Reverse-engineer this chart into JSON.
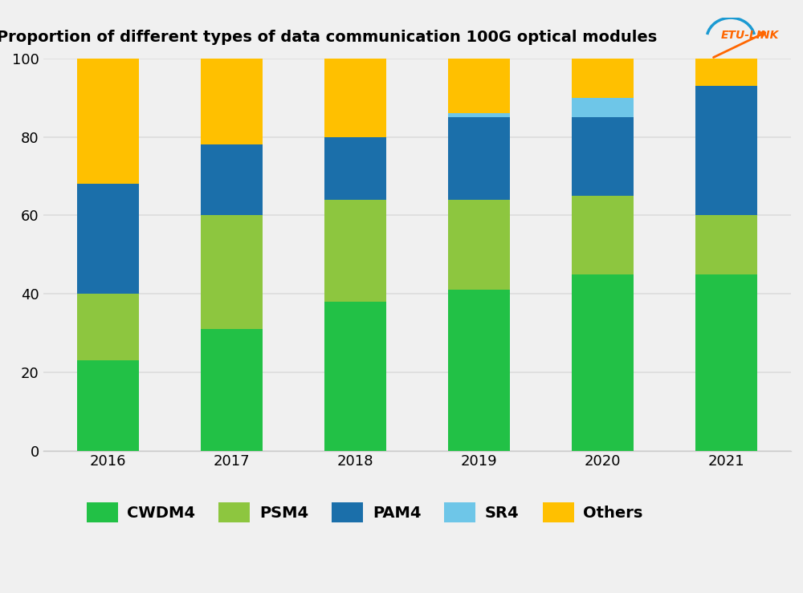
{
  "years": [
    "2016",
    "2017",
    "2018",
    "2019",
    "2020",
    "2021"
  ],
  "CWDM4": [
    23,
    31,
    38,
    41,
    45,
    45
  ],
  "PSM4": [
    17,
    29,
    26,
    23,
    20,
    15
  ],
  "PAM4": [
    28,
    18,
    16,
    21,
    20,
    33
  ],
  "SR4": [
    0,
    0,
    0,
    1,
    5,
    0
  ],
  "Others": [
    32,
    22,
    20,
    15,
    15,
    8
  ],
  "colors": {
    "CWDM4": "#22C146",
    "PSM4": "#8DC63F",
    "PAM4": "#1B6FAA",
    "SR4": "#6EC6E8",
    "Others": "#FFC000"
  },
  "title": "Proportion of different types of data communication 100G optical modules",
  "ylim": [
    0,
    100
  ],
  "yticks": [
    0,
    20,
    40,
    60,
    80,
    100
  ],
  "bg_color": "#F0F0F0",
  "grid_color": "#DCDCDC",
  "title_fontsize": 14,
  "tick_fontsize": 13,
  "legend_fontsize": 14,
  "bar_width": 0.5
}
